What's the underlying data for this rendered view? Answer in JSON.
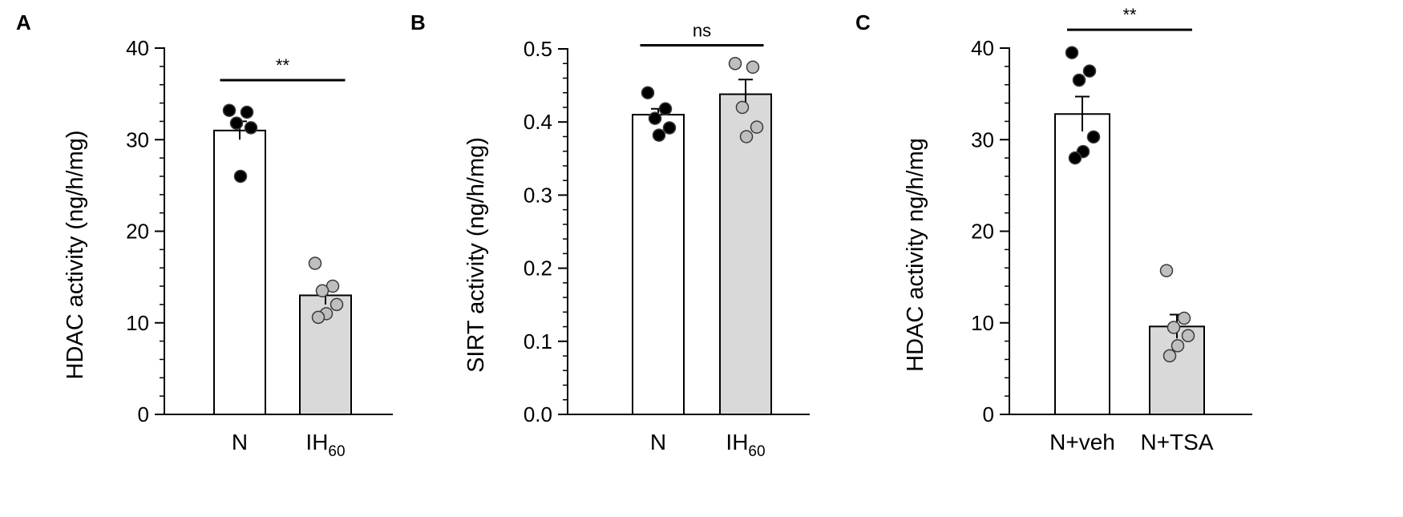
{
  "chart_data": [
    {
      "panel": "A",
      "type": "bar",
      "ylabel": "HDAC activity (ng/h/mg)",
      "ylim": [
        0,
        40
      ],
      "yticks": [
        "0",
        "10",
        "20",
        "30",
        "40"
      ],
      "categories": [
        {
          "main": "N",
          "sub": ""
        },
        {
          "main": "IH",
          "sub": "60"
        }
      ],
      "bar_colors": [
        "#ffffff",
        "#d9d9d9"
      ],
      "values": [
        31.0,
        13.0
      ],
      "errors": [
        1.0,
        1.0
      ],
      "points": [
        [
          33.2,
          33.0,
          31.8,
          31.3,
          26.0
        ],
        [
          16.5,
          14.0,
          13.5,
          12.0,
          11.0,
          10.6
        ]
      ],
      "point_colors": [
        "#000000",
        "#bfbfbf"
      ],
      "significance": {
        "label": "**",
        "pair": [
          0,
          1
        ],
        "y": 36.5
      }
    },
    {
      "panel": "B",
      "type": "bar",
      "ylabel": "SIRT activity (ng/h/mg)",
      "ylim": [
        0,
        0.5
      ],
      "yticks": [
        "0.0",
        "0.1",
        "0.2",
        "0.3",
        "0.4",
        "0.5"
      ],
      "categories": [
        {
          "main": "N",
          "sub": ""
        },
        {
          "main": "IH",
          "sub": "60"
        }
      ],
      "bar_colors": [
        "#ffffff",
        "#d9d9d9"
      ],
      "values": [
        0.41,
        0.438
      ],
      "errors": [
        0.008,
        0.02
      ],
      "points": [
        [
          0.44,
          0.418,
          0.405,
          0.392,
          0.382
        ],
        [
          0.48,
          0.475,
          0.42,
          0.393,
          0.38
        ]
      ],
      "point_colors": [
        "#000000",
        "#bfbfbf"
      ],
      "significance": {
        "label": "ns",
        "pair": [
          0,
          1
        ],
        "y": 0.505
      }
    },
    {
      "panel": "C",
      "type": "bar",
      "ylabel": "HDAC activity ng/h/mg",
      "ylim": [
        0,
        40
      ],
      "yticks": [
        "0",
        "10",
        "20",
        "30",
        "40"
      ],
      "categories": [
        {
          "main": "N+veh",
          "sub": ""
        },
        {
          "main": "N+TSA",
          "sub": ""
        }
      ],
      "bar_colors": [
        "#ffffff",
        "#d9d9d9"
      ],
      "values": [
        32.8,
        9.6
      ],
      "errors": [
        1.9,
        1.3
      ],
      "points": [
        [
          39.5,
          37.5,
          36.5,
          30.3,
          28.7,
          28.0
        ],
        [
          15.7,
          10.5,
          9.5,
          8.6,
          7.5,
          6.4
        ]
      ],
      "point_colors": [
        "#000000",
        "#bfbfbf"
      ],
      "significance": {
        "label": "**",
        "pair": [
          0,
          1
        ],
        "y": 42.0
      }
    }
  ]
}
